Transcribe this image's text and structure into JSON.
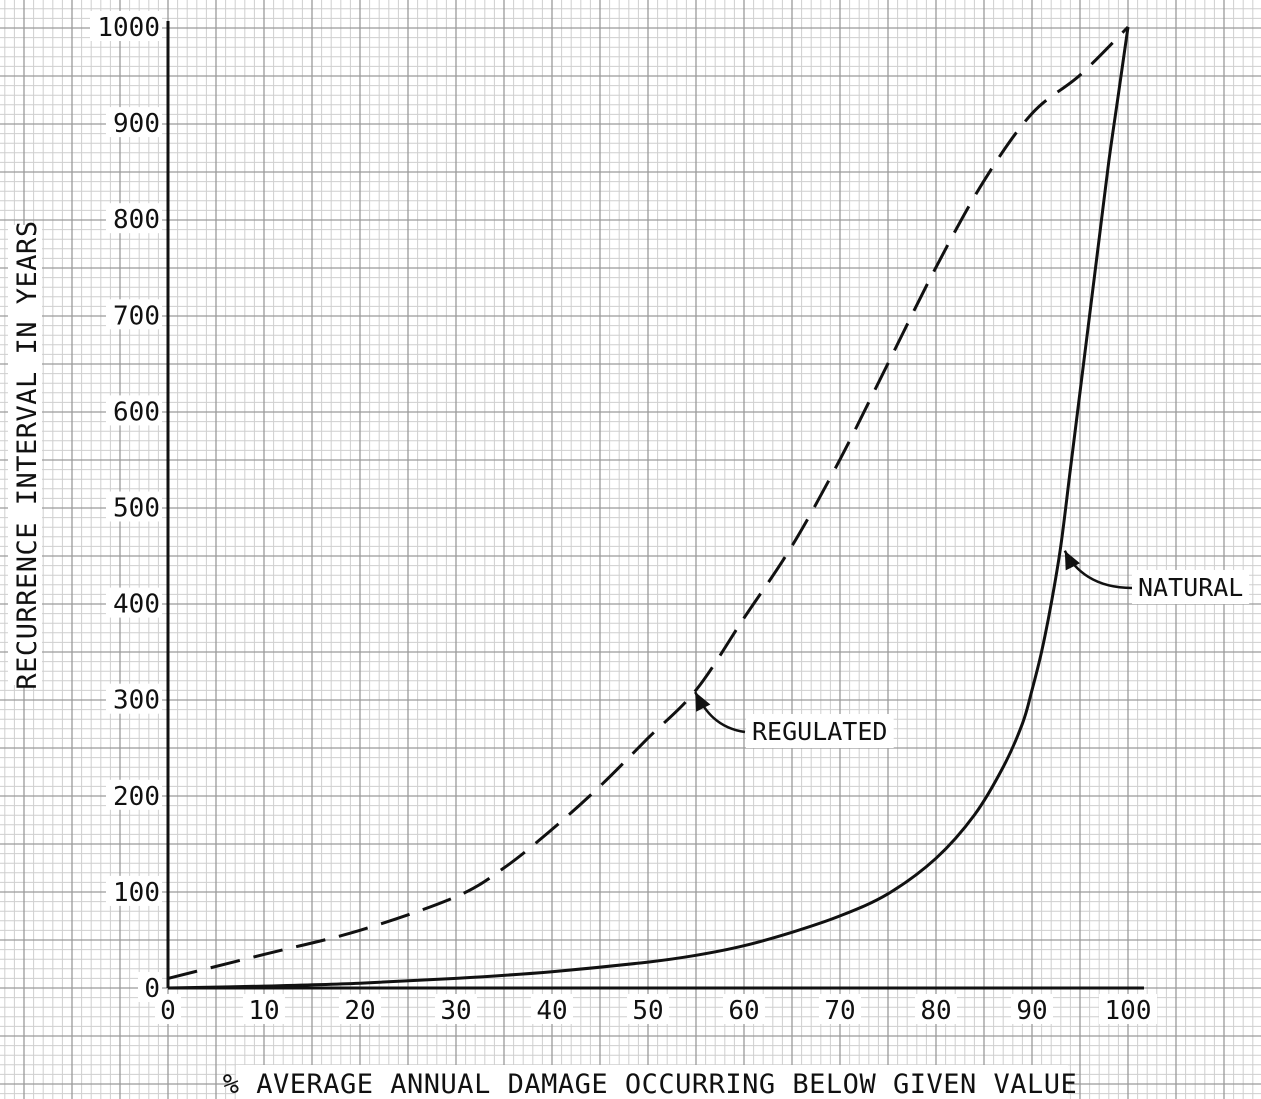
{
  "chart_data": {
    "type": "line",
    "title": "",
    "xlabel": "% AVERAGE ANNUAL DAMAGE OCCURRING BELOW GIVEN VALUE",
    "ylabel": "RECURRENCE INTERVAL IN YEARS",
    "xlim": [
      0,
      100
    ],
    "ylim": [
      0,
      1000
    ],
    "x_ticks": [
      "0",
      "10",
      "20",
      "30",
      "40",
      "50",
      "60",
      "70",
      "80",
      "90",
      "100"
    ],
    "y_ticks": [
      "0",
      "100",
      "200",
      "300",
      "400",
      "500",
      "600",
      "700",
      "800",
      "900",
      "1000"
    ],
    "grid": true,
    "legend": "none",
    "series": [
      {
        "name": "NATURAL",
        "style": "solid",
        "color": "#111111",
        "x": [
          0,
          10,
          20,
          30,
          40,
          50,
          55,
          60,
          65,
          70,
          75,
          80,
          84,
          87,
          89,
          90,
          91,
          92,
          93,
          94,
          95,
          96,
          97,
          98,
          99,
          100
        ],
        "y": [
          0,
          2,
          5,
          10,
          17,
          27,
          34,
          44,
          58,
          75,
          98,
          135,
          180,
          230,
          275,
          310,
          350,
          400,
          460,
          540,
          620,
          700,
          780,
          860,
          930,
          1000
        ]
      },
      {
        "name": "REGULATED",
        "style": "dashed",
        "color": "#111111",
        "x": [
          0,
          10,
          20,
          30,
          35,
          40,
          45,
          50,
          55,
          60,
          65,
          70,
          75,
          80,
          85,
          90,
          95,
          100
        ],
        "y": [
          10,
          35,
          60,
          95,
          125,
          165,
          210,
          260,
          310,
          385,
          460,
          550,
          650,
          750,
          840,
          910,
          950,
          1000
        ]
      }
    ],
    "annotations": [
      {
        "text": "REGULATED",
        "series": "REGULATED",
        "point": [
          54.5,
          308
        ]
      },
      {
        "text": "NATURAL",
        "series": "NATURAL",
        "point": [
          93,
          455
        ]
      }
    ]
  }
}
